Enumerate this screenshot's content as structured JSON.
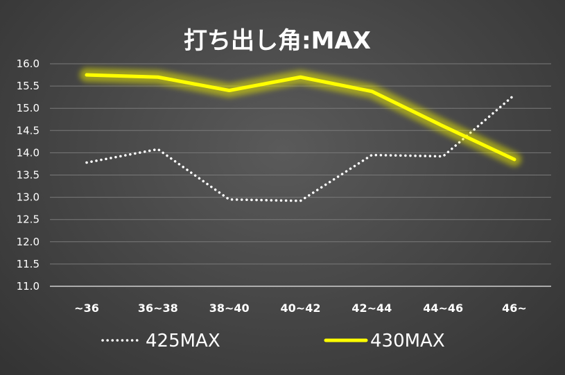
{
  "chart_data": {
    "type": "line",
    "title": "打ち出し角:MAX",
    "categories": [
      "~36",
      "36~38",
      "38~40",
      "40~42",
      "42~44",
      "44~46",
      "46~"
    ],
    "ylim": [
      11.0,
      16.0
    ],
    "yticks": [
      "16.0",
      "15.5",
      "15.0",
      "14.5",
      "14.0",
      "13.5",
      "13.0",
      "12.5",
      "12.0",
      "11.5",
      "11.0"
    ],
    "grid": true,
    "legend_position": "bottom",
    "series": [
      {
        "name": "425MAX",
        "values": [
          13.78,
          14.08,
          12.95,
          12.92,
          13.95,
          13.92,
          15.3
        ],
        "color": "#ffffff",
        "style": "dotted"
      },
      {
        "name": "430MAX",
        "values": [
          15.75,
          15.7,
          15.4,
          15.7,
          15.38,
          14.6,
          13.85
        ],
        "color": "#ffff00",
        "style": "solid-glow"
      }
    ]
  }
}
